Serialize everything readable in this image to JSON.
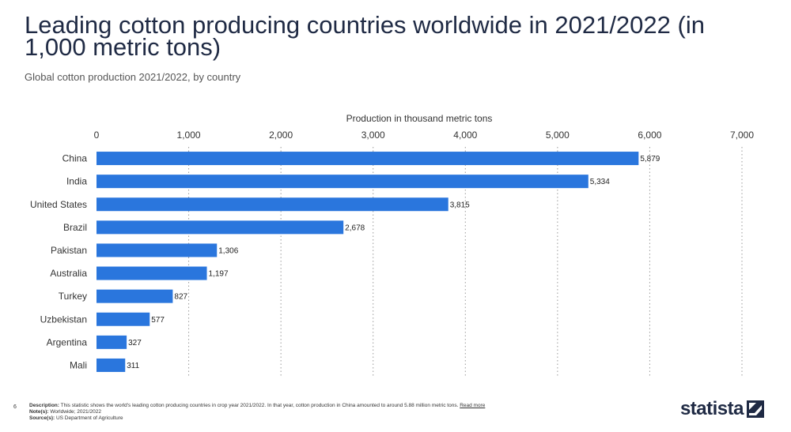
{
  "header": {
    "title": "Leading cotton producing countries worldwide in 2021/2022 (in 1,000 metric tons)",
    "subtitle": "Global cotton production 2021/2022, by country"
  },
  "chart_data": {
    "type": "bar",
    "orientation": "horizontal",
    "categories": [
      "China",
      "India",
      "United States",
      "Brazil",
      "Pakistan",
      "Australia",
      "Turkey",
      "Uzbekistan",
      "Argentina",
      "Mali"
    ],
    "values": [
      5879,
      5334,
      3815,
      2678,
      1306,
      1197,
      827,
      577,
      327,
      311
    ],
    "value_labels": [
      "5,879",
      "5,334",
      "3,815",
      "2,678",
      "1,306",
      "1,197",
      "827",
      "577",
      "327",
      "311"
    ],
    "xlabel": "Production in thousand metric tons",
    "xlim": [
      0,
      7000
    ],
    "ticks": [
      0,
      1000,
      2000,
      3000,
      4000,
      5000,
      6000,
      7000
    ],
    "tick_labels": [
      "0",
      "1,000",
      "2,000",
      "3,000",
      "4,000",
      "5,000",
      "6,000",
      "7,000"
    ],
    "grid": true,
    "bar_color": "#2a76dd"
  },
  "footer": {
    "page_number": "6",
    "description_label": "Description:",
    "description": "This statistic shows the world's leading cotton producing countries in crop year 2021/2022. In that year, cotton production in China amounted to around 5.88 million metric tons.",
    "read_more": "Read more",
    "notes_label": "Note(s):",
    "notes": "Worldwide; 2021/2022",
    "sources_label": "Source(s):",
    "sources": "US Department of Agriculture"
  },
  "logo": {
    "text": "statista",
    "icon": "statista-logo-icon"
  }
}
